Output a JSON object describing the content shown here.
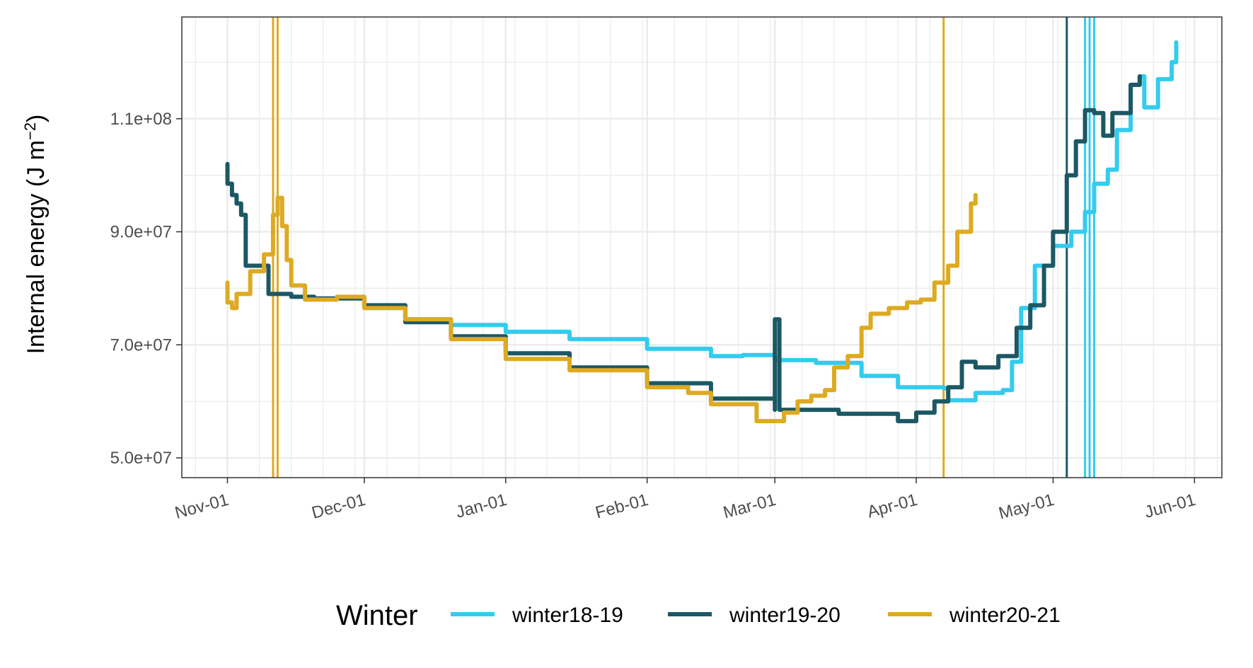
{
  "chart_data": {
    "type": "line",
    "ylabel_main": "Internal energy (J m",
    "ylabel_sup": "−2",
    "ylabel_close": ")",
    "xlabel": "",
    "x_reference_year": "2018",
    "xlim": [
      "2018-10-22",
      "2019-06-07"
    ],
    "ylim": [
      46500000,
      128000000
    ],
    "x_ticks": [
      {
        "date": "2018-11-01",
        "label": "Nov-01"
      },
      {
        "date": "2018-12-01",
        "label": "Dec-01"
      },
      {
        "date": "2019-01-01",
        "label": "Jan-01"
      },
      {
        "date": "2019-02-01",
        "label": "Feb-01"
      },
      {
        "date": "2019-03-01",
        "label": "Mar-01"
      },
      {
        "date": "2019-04-01",
        "label": "Apr-01"
      },
      {
        "date": "2019-05-01",
        "label": "May-01"
      },
      {
        "date": "2019-06-01",
        "label": "Jun-01"
      }
    ],
    "y_ticks": [
      {
        "value": 50000000,
        "label": "5.0e+07"
      },
      {
        "value": 70000000,
        "label": "7.0e+07"
      },
      {
        "value": 90000000,
        "label": "9.0e+07"
      },
      {
        "value": 110000000,
        "label": "1.1e+08"
      }
    ],
    "y_minor": [
      60000000,
      80000000,
      100000000,
      120000000
    ],
    "grid": true,
    "legend_title": "Winter",
    "legend_position": "bottom",
    "series": [
      {
        "name": "winter18-19",
        "color": "#33CCEE",
        "points": [
          [
            "2018-12-10",
            74500000
          ],
          [
            "2018-12-20",
            73500000
          ],
          [
            "2019-01-01",
            72300000
          ],
          [
            "2019-01-15",
            71000000
          ],
          [
            "2019-02-01",
            69300000
          ],
          [
            "2019-02-15",
            68000000
          ],
          [
            "2019-02-22",
            68200000
          ],
          [
            "2019-03-01",
            67300000
          ],
          [
            "2019-03-10",
            66800000
          ],
          [
            "2019-03-20",
            64500000
          ],
          [
            "2019-03-28",
            62500000
          ],
          [
            "2019-04-07",
            62300000
          ],
          [
            "2019-04-08",
            60200000
          ],
          [
            "2019-04-14",
            61500000
          ],
          [
            "2019-04-19",
            61500000
          ],
          [
            "2019-04-20",
            62000000
          ],
          [
            "2019-04-22",
            67000000
          ],
          [
            "2019-04-24",
            76500000
          ],
          [
            "2019-04-27",
            84000000
          ],
          [
            "2019-05-01",
            87500000
          ],
          [
            "2019-05-05",
            90000000
          ],
          [
            "2019-05-08",
            93500000
          ],
          [
            "2019-05-10",
            98500000
          ],
          [
            "2019-05-13",
            101000000
          ],
          [
            "2019-05-15",
            108000000
          ],
          [
            "2019-05-18",
            116000000
          ],
          [
            "2019-05-20",
            117500000
          ],
          [
            "2019-05-21",
            112000000
          ],
          [
            "2019-05-24",
            117000000
          ],
          [
            "2019-05-27",
            120000000
          ],
          [
            "2019-05-28",
            123500000
          ]
        ],
        "vlines": [
          "2019-05-08",
          "2019-05-09",
          "2019-05-10"
        ]
      },
      {
        "name": "winter19-20",
        "color": "#1C5864",
        "points": [
          [
            "2018-11-01",
            102000000
          ],
          [
            "2018-11-01",
            98500000
          ],
          [
            "2018-11-02",
            96500000
          ],
          [
            "2018-11-03",
            95000000
          ],
          [
            "2018-11-04",
            93000000
          ],
          [
            "2018-11-05",
            84000000
          ],
          [
            "2018-11-10",
            79000000
          ],
          [
            "2018-11-15",
            78500000
          ],
          [
            "2018-11-20",
            78200000
          ],
          [
            "2018-12-01",
            77000000
          ],
          [
            "2018-12-10",
            74000000
          ],
          [
            "2018-12-20",
            71500000
          ],
          [
            "2019-01-01",
            68500000
          ],
          [
            "2019-01-15",
            66000000
          ],
          [
            "2019-02-01",
            63200000
          ],
          [
            "2019-02-15",
            60500000
          ],
          [
            "2019-03-01",
            58500000
          ],
          [
            "2019-03-01",
            74500000
          ],
          [
            "2019-03-02",
            58500000
          ],
          [
            "2019-03-15",
            57800000
          ],
          [
            "2019-03-28",
            56500000
          ],
          [
            "2019-04-01",
            58000000
          ],
          [
            "2019-04-05",
            60000000
          ],
          [
            "2019-04-08",
            62500000
          ],
          [
            "2019-04-11",
            67000000
          ],
          [
            "2019-04-14",
            66000000
          ],
          [
            "2019-04-19",
            68000000
          ],
          [
            "2019-04-23",
            73000000
          ],
          [
            "2019-04-26",
            77000000
          ],
          [
            "2019-04-29",
            84000000
          ],
          [
            "2019-05-01",
            90000000
          ],
          [
            "2019-05-04",
            100000000
          ],
          [
            "2019-05-06",
            106000000
          ],
          [
            "2019-05-08",
            111500000
          ],
          [
            "2019-05-10",
            111000000
          ],
          [
            "2019-05-12",
            107000000
          ],
          [
            "2019-05-14",
            111000000
          ],
          [
            "2019-05-18",
            116000000
          ],
          [
            "2019-05-20",
            117500000
          ]
        ],
        "vlines": [
          "2019-05-04"
        ]
      },
      {
        "name": "winter20-21",
        "color": "#DDAA22",
        "points": [
          [
            "2018-11-01",
            81000000
          ],
          [
            "2018-11-01",
            77500000
          ],
          [
            "2018-11-02",
            76500000
          ],
          [
            "2018-11-03",
            79000000
          ],
          [
            "2018-11-06",
            83000000
          ],
          [
            "2018-11-09",
            86000000
          ],
          [
            "2018-11-11",
            93000000
          ],
          [
            "2018-11-12",
            96000000
          ],
          [
            "2018-11-13",
            91000000
          ],
          [
            "2018-11-14",
            85000000
          ],
          [
            "2018-11-15",
            80500000
          ],
          [
            "2018-11-18",
            78000000
          ],
          [
            "2018-11-25",
            78500000
          ],
          [
            "2018-12-01",
            76500000
          ],
          [
            "2018-12-10",
            74500000
          ],
          [
            "2018-12-20",
            71000000
          ],
          [
            "2019-01-01",
            67500000
          ],
          [
            "2019-01-15",
            65500000
          ],
          [
            "2019-02-01",
            62500000
          ],
          [
            "2019-02-10",
            61500000
          ],
          [
            "2019-02-15",
            59500000
          ],
          [
            "2019-02-25",
            56500000
          ],
          [
            "2019-03-01",
            56500000
          ],
          [
            "2019-03-03",
            58000000
          ],
          [
            "2019-03-06",
            60000000
          ],
          [
            "2019-03-09",
            61000000
          ],
          [
            "2019-03-12",
            62000000
          ],
          [
            "2019-03-14",
            66000000
          ],
          [
            "2019-03-17",
            68000000
          ],
          [
            "2019-03-20",
            73000000
          ],
          [
            "2019-03-22",
            75500000
          ],
          [
            "2019-03-26",
            76500000
          ],
          [
            "2019-03-30",
            77500000
          ],
          [
            "2019-04-02",
            78000000
          ],
          [
            "2019-04-05",
            81000000
          ],
          [
            "2019-04-08",
            84000000
          ],
          [
            "2019-04-10",
            90000000
          ],
          [
            "2019-04-13",
            95000000
          ],
          [
            "2019-04-14",
            96500000
          ]
        ],
        "vlines": [
          "2018-11-11",
          "2018-11-12",
          "2019-04-07"
        ]
      }
    ]
  }
}
